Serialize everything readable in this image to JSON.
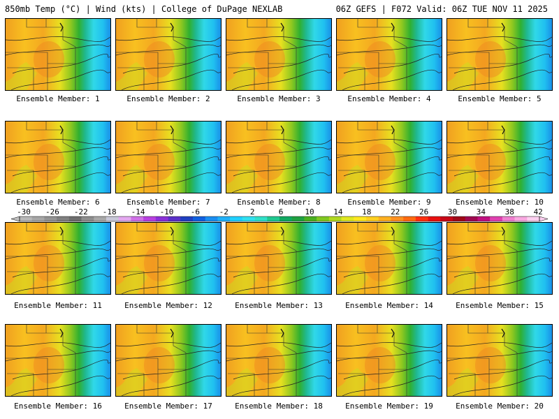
{
  "header": {
    "left": "850mb Temp (°C) | Wind (kts) | College of DuPage NEXLAB",
    "right": "06Z GEFS | F072 Valid: 06Z TUE NOV 11 2025"
  },
  "members": [
    {
      "label": "Ensemble Member: 1"
    },
    {
      "label": "Ensemble Member: 2"
    },
    {
      "label": "Ensemble Member: 3"
    },
    {
      "label": "Ensemble Member: 4"
    },
    {
      "label": "Ensemble Member: 5"
    },
    {
      "label": "Ensemble Member: 6"
    },
    {
      "label": "Ensemble Member: 7"
    },
    {
      "label": "Ensemble Member: 8"
    },
    {
      "label": "Ensemble Member: 9"
    },
    {
      "label": "Ensemble Member: 10"
    },
    {
      "label": "Ensemble Member: 11"
    },
    {
      "label": "Ensemble Member: 12"
    },
    {
      "label": "Ensemble Member: 13"
    },
    {
      "label": "Ensemble Member: 14"
    },
    {
      "label": "Ensemble Member: 15"
    },
    {
      "label": "Ensemble Member: 16"
    },
    {
      "label": "Ensemble Member: 17"
    },
    {
      "label": "Ensemble Member: 18"
    },
    {
      "label": "Ensemble Member: 19"
    },
    {
      "label": "Ensemble Member: 20"
    }
  ],
  "colorbar": {
    "tick_labels": [
      "-30",
      "-26",
      "-22",
      "-18",
      "-14",
      "-10",
      "-6",
      "-2",
      "2",
      "6",
      "10",
      "14",
      "18",
      "22",
      "26",
      "30",
      "34",
      "38",
      "42"
    ],
    "colors": [
      "#b8b8b8",
      "#a6a6a6",
      "#939393",
      "#808080",
      "#6d6d6d",
      "#8e8e8e",
      "#a8a8a8",
      "#c8c8d8",
      "#e4a8f0",
      "#d070e8",
      "#b840e0",
      "#8a30d8",
      "#5a30c8",
      "#2040c0",
      "#1060e0",
      "#1a8ef0",
      "#20b0f8",
      "#20d0ff",
      "#30e0f0",
      "#30e0c8",
      "#20c890",
      "#10a860",
      "#20a040",
      "#4ab020",
      "#80c820",
      "#b0d820",
      "#e0e820",
      "#ffe820",
      "#ffd020",
      "#ffb020",
      "#ff9020",
      "#ff6a10",
      "#ff3010",
      "#e81010",
      "#c80818",
      "#a00818",
      "#a00850",
      "#c01080",
      "#e040b0",
      "#f080d0",
      "#f8a8e0",
      "#fcd0f0"
    ]
  }
}
